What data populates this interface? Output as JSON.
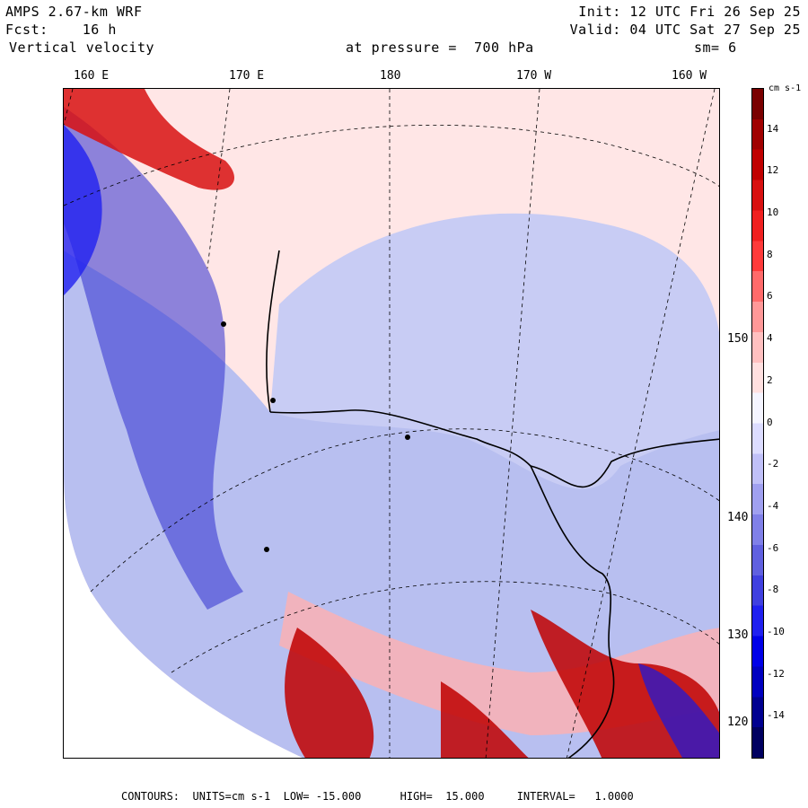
{
  "header": {
    "model": "AMPS 2.67-km WRF",
    "forecast": "Fcst:    16 h",
    "field": "Vertical velocity",
    "level": "at pressure =  700 hPa",
    "init": "Init: 12 UTC Fri 26 Sep 25",
    "valid": "Valid: 04 UTC Sat 27 Sep 25",
    "smoothing": "sm= 6"
  },
  "lon_labels": [
    "160 E",
    "170 E",
    "180",
    "170 W",
    "160 W"
  ],
  "lat_labels": [
    "150 W",
    "140 W",
    "130 W",
    "120 W"
  ],
  "colorbar": {
    "units": "cm s-1",
    "ticks": [
      "14",
      "12",
      "10",
      "8",
      "6",
      "4",
      "2",
      "0",
      "-2",
      "-4",
      "-6",
      "-8",
      "-10",
      "-12",
      "-14"
    ],
    "colors": [
      "#7a0000",
      "#a00000",
      "#c00000",
      "#d81010",
      "#f02020",
      "#ff3a3a",
      "#ff6a6a",
      "#ff9898",
      "#ffc0c0",
      "#ffe0e0",
      "#f4f4ff",
      "#dcdcff",
      "#c0c0f8",
      "#a0a0f0",
      "#8080e8",
      "#6060e0",
      "#4040e0",
      "#2020f0",
      "#0000e8",
      "#0000c0",
      "#000090",
      "#000060"
    ]
  },
  "map": {
    "sea_color": "#ffe6e6",
    "ross_shelf_color": "#c8ccf4",
    "land_color": "#b8bff0",
    "updraft_color": "#d81010",
    "downdraft_color": "#2020f0"
  },
  "footer": "CONTOURS:  UNITS=cm s-1  LOW= -15.000      HIGH=  15.000     INTERVAL=   1.0000"
}
